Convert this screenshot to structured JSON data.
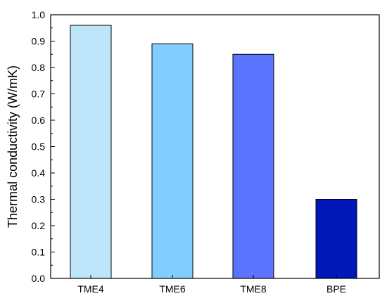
{
  "chart_data": {
    "type": "bar",
    "title": "",
    "xlabel": "",
    "ylabel": "Thermal conductivity (W/mK)",
    "categories": [
      "TME4",
      "TME6",
      "TME8",
      "BPE"
    ],
    "values": [
      0.96,
      0.89,
      0.85,
      0.3
    ],
    "bar_colors": [
      "#bde6fb",
      "#82cdfd",
      "#5c73fe",
      "#0018b8"
    ],
    "ylim": [
      0,
      1.0
    ],
    "yticks": [
      "0.0",
      "0.1",
      "0.2",
      "0.3",
      "0.4",
      "0.5",
      "0.6",
      "0.7",
      "0.8",
      "0.9",
      "1.0"
    ],
    "grid": false,
    "legend": "none"
  }
}
